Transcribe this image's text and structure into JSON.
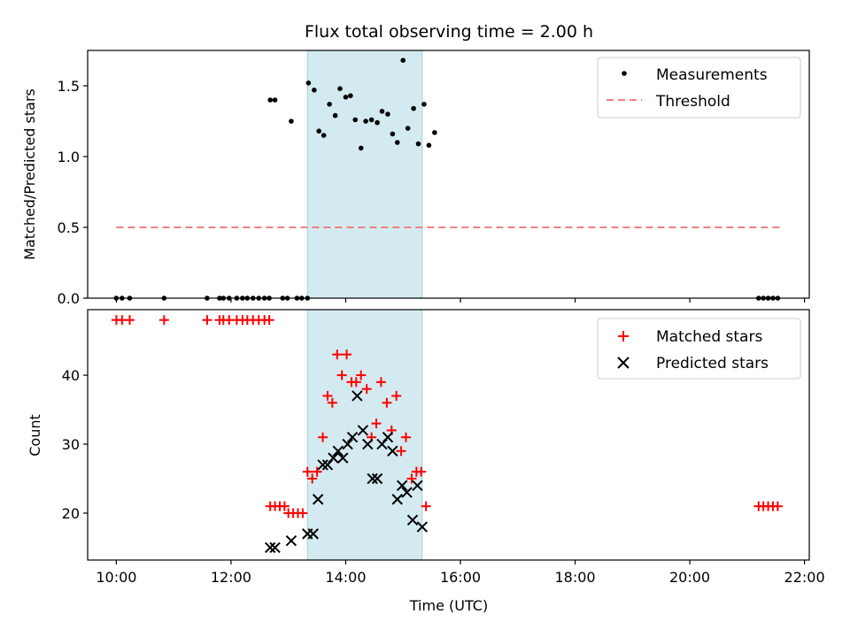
{
  "chart_data": {
    "title": "Flux total observing time = 2.00 h",
    "xlabel": "Time (UTC)",
    "x_ticks": [
      "10:00",
      "12:00",
      "14:00",
      "16:00",
      "18:00",
      "20:00",
      "22:00"
    ],
    "xlim": [
      "09:30",
      "22:05"
    ],
    "shaded_interval": [
      "13:20",
      "15:20"
    ],
    "shade_color": "#d3eaf0",
    "top": {
      "type": "scatter",
      "ylabel": "Matched/Predicted stars",
      "ylim": [
        0,
        1.75
      ],
      "y_ticks": [
        "0.0",
        "0.5",
        "1.0",
        "1.5"
      ],
      "legend": {
        "position": "top-right",
        "entries": [
          "Measurements",
          "Threshold"
        ]
      },
      "threshold": {
        "name": "Threshold",
        "value": 0.5,
        "x_range": [
          "10:00",
          "21:35"
        ],
        "color": "#f08080"
      },
      "measurements": {
        "name": "Measurements",
        "color": "#000000",
        "points": [
          [
            "10:00",
            0
          ],
          [
            "10:06",
            0
          ],
          [
            "10:14",
            0
          ],
          [
            "10:50",
            0
          ],
          [
            "11:35",
            0
          ],
          [
            "11:48",
            0
          ],
          [
            "11:52",
            0
          ],
          [
            "11:58",
            0
          ],
          [
            "12:06",
            0
          ],
          [
            "12:12",
            0
          ],
          [
            "12:17",
            0
          ],
          [
            "12:23",
            0
          ],
          [
            "12:29",
            0
          ],
          [
            "12:35",
            0
          ],
          [
            "12:40",
            0
          ],
          [
            "12:41",
            1.4
          ],
          [
            "12:46",
            1.4
          ],
          [
            "12:54",
            0
          ],
          [
            "12:59",
            0
          ],
          [
            "13:03",
            1.25
          ],
          [
            "13:09",
            0
          ],
          [
            "13:14",
            0
          ],
          [
            "13:20",
            0
          ],
          [
            "13:21",
            1.52
          ],
          [
            "13:27",
            1.47
          ],
          [
            "13:32",
            1.18
          ],
          [
            "13:37",
            1.15
          ],
          [
            "13:43",
            1.37
          ],
          [
            "13:49",
            1.29
          ],
          [
            "13:54",
            1.48
          ],
          [
            "14:00",
            1.42
          ],
          [
            "14:05",
            1.43
          ],
          [
            "14:10",
            1.26
          ],
          [
            "14:16",
            1.06
          ],
          [
            "14:21",
            1.25
          ],
          [
            "14:27",
            1.26
          ],
          [
            "14:33",
            1.24
          ],
          [
            "14:38",
            1.32
          ],
          [
            "14:44",
            1.3
          ],
          [
            "14:49",
            1.16
          ],
          [
            "14:54",
            1.1
          ],
          [
            "15:00",
            1.68
          ],
          [
            "15:05",
            1.2
          ],
          [
            "15:11",
            1.34
          ],
          [
            "15:16",
            1.09
          ],
          [
            "15:22",
            1.37
          ],
          [
            "15:27",
            1.08
          ],
          [
            "15:33",
            1.17
          ],
          [
            "21:12",
            0
          ],
          [
            "21:17",
            0
          ],
          [
            "21:22",
            0
          ],
          [
            "21:27",
            0
          ],
          [
            "21:32",
            0
          ]
        ]
      }
    },
    "bottom": {
      "type": "scatter",
      "ylabel": "Count",
      "ylim": [
        13.2,
        49.5
      ],
      "y_ticks": [
        "20",
        "30",
        "40"
      ],
      "legend": {
        "position": "top-right",
        "entries": [
          "Matched stars",
          "Predicted stars"
        ]
      },
      "series": [
        {
          "name": "Matched stars",
          "marker": "plus",
          "color": "#ff0000",
          "points": [
            [
              "10:00",
              48
            ],
            [
              "10:06",
              48
            ],
            [
              "10:14",
              48
            ],
            [
              "10:50",
              48
            ],
            [
              "11:35",
              48
            ],
            [
              "11:48",
              48
            ],
            [
              "11:52",
              48
            ],
            [
              "11:58",
              48
            ],
            [
              "12:06",
              48
            ],
            [
              "12:12",
              48
            ],
            [
              "12:17",
              48
            ],
            [
              "12:23",
              48
            ],
            [
              "12:29",
              48
            ],
            [
              "12:35",
              48
            ],
            [
              "12:40",
              48
            ],
            [
              "12:41",
              21
            ],
            [
              "12:46",
              21
            ],
            [
              "12:51",
              21
            ],
            [
              "12:56",
              21
            ],
            [
              "13:00",
              20
            ],
            [
              "13:05",
              20
            ],
            [
              "13:10",
              20
            ],
            [
              "13:15",
              20
            ],
            [
              "13:20",
              26
            ],
            [
              "13:25",
              25
            ],
            [
              "13:30",
              26
            ],
            [
              "13:36",
              31
            ],
            [
              "13:41",
              37
            ],
            [
              "13:46",
              36
            ],
            [
              "13:51",
              43
            ],
            [
              "13:56",
              40
            ],
            [
              "14:01",
              43
            ],
            [
              "14:06",
              39
            ],
            [
              "14:11",
              39
            ],
            [
              "14:16",
              40
            ],
            [
              "14:22",
              38
            ],
            [
              "14:27",
              31
            ],
            [
              "14:32",
              33
            ],
            [
              "14:37",
              39
            ],
            [
              "14:43",
              36
            ],
            [
              "14:48",
              32
            ],
            [
              "14:53",
              37
            ],
            [
              "14:58",
              29
            ],
            [
              "15:03",
              31
            ],
            [
              "15:09",
              25
            ],
            [
              "15:14",
              26
            ],
            [
              "15:19",
              26
            ],
            [
              "15:24",
              21
            ],
            [
              "21:12",
              21
            ],
            [
              "21:17",
              21
            ],
            [
              "21:22",
              21
            ],
            [
              "21:27",
              21
            ],
            [
              "21:32",
              21
            ]
          ]
        },
        {
          "name": "Predicted stars",
          "marker": "x",
          "color": "#000000",
          "points": [
            [
              "12:41",
              15
            ],
            [
              "12:46",
              15
            ],
            [
              "13:03",
              16
            ],
            [
              "13:20",
              17
            ],
            [
              "13:26",
              17
            ],
            [
              "13:31",
              22
            ],
            [
              "13:36",
              27
            ],
            [
              "13:41",
              27
            ],
            [
              "13:47",
              28
            ],
            [
              "13:52",
              29
            ],
            [
              "13:57",
              28
            ],
            [
              "14:02",
              30
            ],
            [
              "14:07",
              31
            ],
            [
              "14:12",
              37
            ],
            [
              "14:18",
              32
            ],
            [
              "14:23",
              30
            ],
            [
              "14:28",
              25
            ],
            [
              "14:33",
              25
            ],
            [
              "14:38",
              30
            ],
            [
              "14:44",
              31
            ],
            [
              "14:49",
              29
            ],
            [
              "14:54",
              22
            ],
            [
              "14:59",
              24
            ],
            [
              "15:04",
              23
            ],
            [
              "15:10",
              19
            ],
            [
              "15:15",
              24
            ],
            [
              "15:20",
              18
            ]
          ]
        }
      ]
    }
  }
}
